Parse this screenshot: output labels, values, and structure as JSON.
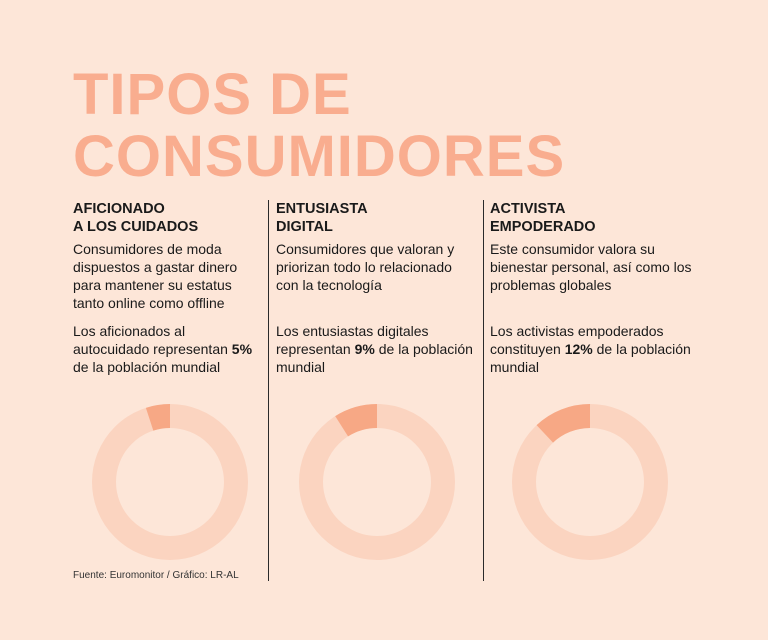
{
  "title_line1": "TIPOS DE",
  "title_line2": "CONSUMIDORES",
  "colors": {
    "background": "#fde6d8",
    "title": "#f9ad8f",
    "donut_rest": "#fbd4c0",
    "donut_highlight": "#f7a885"
  },
  "chart_data": [
    {
      "type": "pie",
      "heading_line1": "AFICIONADO",
      "heading_line2": "A LOS CUIDADOS",
      "description": "Consumidores de moda dispuestos a gastar dinero para mantener su estatus tanto online como offline",
      "stat_before": "Los aficionados al autocuidado representan ",
      "stat_value": "5%",
      "stat_after": " de la población mundial",
      "percent": 5
    },
    {
      "type": "pie",
      "heading_line1": "ENTUSIASTA",
      "heading_line2": "DIGITAL",
      "description": "Consumidores que valoran y priorizan todo lo relacionado con la tecnología",
      "stat_before": "Los entusiastas digitales representan ",
      "stat_value": "9%",
      "stat_after": " de la población mundial",
      "percent": 9
    },
    {
      "type": "pie",
      "heading_line1": "ACTIVISTA",
      "heading_line2": "EMPODERADO",
      "description": "Este consumidor valora su bienestar personal, así como los problemas globales",
      "stat_before": "Los activistas empoderados constituyen ",
      "stat_value": "12%",
      "stat_after": " de la población mundial",
      "percent": 12
    }
  ],
  "source": "Fuente: Euromonitor / Gráfico: LR-AL"
}
